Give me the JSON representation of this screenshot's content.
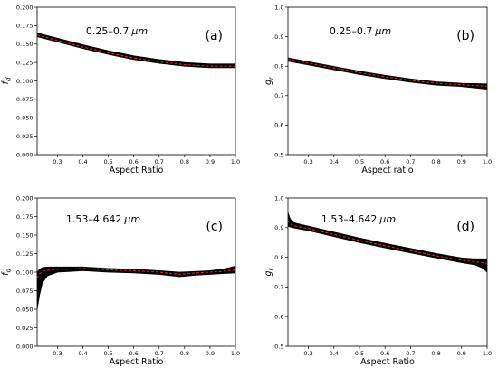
{
  "chart_data": [
    {
      "type": "line",
      "panel_label": "(a)",
      "annotation": "0.25–0.7",
      "annotation_unit": "μm",
      "xlabel": "Aspect Ratio",
      "ylabel_main": "f",
      "ylabel_sub": "d",
      "xlim": [
        0.22,
        1.0
      ],
      "ylim": [
        0.0,
        0.2
      ],
      "xticks": [
        "0.3",
        "0.4",
        "0.5",
        "0.6",
        "0.7",
        "0.8",
        "0.9",
        "1.0"
      ],
      "yticks": [
        "0.000",
        "0.025",
        "0.050",
        "0.075",
        "0.100",
        "0.125",
        "0.150",
        "0.175",
        "0.200"
      ],
      "series": [
        {
          "style": "band",
          "color": "#000000",
          "x": [
            0.22,
            0.3,
            0.4,
            0.5,
            0.6,
            0.7,
            0.8,
            0.9,
            1.0
          ],
          "upper": [
            0.165,
            0.158,
            0.149,
            0.141,
            0.134,
            0.129,
            0.125,
            0.123,
            0.123
          ],
          "lower": [
            0.16,
            0.153,
            0.144,
            0.136,
            0.129,
            0.124,
            0.12,
            0.118,
            0.118
          ]
        },
        {
          "style": "dashed",
          "color": "#e4262b",
          "x": [
            0.22,
            0.3,
            0.4,
            0.5,
            0.6,
            0.7,
            0.8,
            0.9,
            1.0
          ],
          "y": [
            0.162,
            0.155,
            0.146,
            0.138,
            0.131,
            0.126,
            0.122,
            0.12,
            0.12
          ]
        }
      ]
    },
    {
      "type": "line",
      "panel_label": "(b)",
      "annotation": "0.25–0.7",
      "annotation_unit": "μm",
      "xlabel": "Aspect ratio",
      "ylabel_main": "g",
      "ylabel_sub": "r",
      "xlim": [
        0.22,
        1.0
      ],
      "ylim": [
        0.5,
        1.0
      ],
      "xticks": [
        "0.3",
        "0.4",
        "0.5",
        "0.6",
        "0.7",
        "0.8",
        "0.9",
        "1.0"
      ],
      "yticks": [
        "0.5",
        "0.6",
        "0.7",
        "0.8",
        "0.9",
        "1.0"
      ],
      "series": [
        {
          "style": "band",
          "color": "#000000",
          "x": [
            0.22,
            0.3,
            0.4,
            0.5,
            0.6,
            0.7,
            0.8,
            0.9,
            1.0
          ],
          "upper": [
            0.828,
            0.815,
            0.799,
            0.783,
            0.769,
            0.757,
            0.747,
            0.742,
            0.74
          ],
          "lower": [
            0.817,
            0.804,
            0.788,
            0.772,
            0.758,
            0.746,
            0.736,
            0.731,
            0.722
          ]
        },
        {
          "style": "dashed",
          "color": "#e4262b",
          "x": [
            0.22,
            0.3,
            0.4,
            0.5,
            0.6,
            0.7,
            0.8,
            0.9,
            1.0
          ],
          "y": [
            0.823,
            0.81,
            0.794,
            0.778,
            0.764,
            0.752,
            0.742,
            0.737,
            0.732
          ]
        }
      ]
    },
    {
      "type": "line",
      "panel_label": "(c)",
      "annotation": "1.53–4.642",
      "annotation_unit": "μm",
      "xlabel": "Aspect Ratio",
      "ylabel_main": "f",
      "ylabel_sub": "d",
      "xlim": [
        0.22,
        1.0
      ],
      "ylim": [
        0.0,
        0.2
      ],
      "xticks": [
        "0.3",
        "0.4",
        "0.5",
        "0.6",
        "0.7",
        "0.8",
        "0.9",
        "1.0"
      ],
      "yticks": [
        "0.000",
        "0.025",
        "0.050",
        "0.075",
        "0.100",
        "0.125",
        "0.150",
        "0.175",
        "0.200"
      ],
      "series": [
        {
          "style": "band",
          "color": "#000000",
          "x": [
            0.22,
            0.23,
            0.24,
            0.26,
            0.3,
            0.35,
            0.4,
            0.5,
            0.6,
            0.7,
            0.78,
            0.85,
            0.9,
            0.95,
            1.0
          ],
          "upper": [
            0.1,
            0.104,
            0.106,
            0.107,
            0.107,
            0.107,
            0.107,
            0.105,
            0.104,
            0.102,
            0.1,
            0.101,
            0.102,
            0.104,
            0.108
          ],
          "lower": [
            0.05,
            0.07,
            0.085,
            0.095,
            0.1,
            0.101,
            0.102,
            0.1,
            0.099,
            0.097,
            0.094,
            0.096,
            0.097,
            0.098,
            0.099
          ]
        },
        {
          "style": "dashed",
          "color": "#e4262b",
          "x": [
            0.22,
            0.23,
            0.25,
            0.28,
            0.3,
            0.35,
            0.4,
            0.5,
            0.6,
            0.7,
            0.78,
            0.85,
            0.9,
            0.95,
            1.0
          ],
          "y": [
            0.092,
            0.098,
            0.102,
            0.103,
            0.104,
            0.104,
            0.105,
            0.103,
            0.102,
            0.1,
            0.097,
            0.099,
            0.1,
            0.101,
            0.103
          ]
        }
      ]
    },
    {
      "type": "line",
      "panel_label": "(d)",
      "annotation": "1.53–4.642",
      "annotation_unit": "μm",
      "xlabel": "Aspect Ratio",
      "ylabel_main": "g",
      "ylabel_sub": "r",
      "xlim": [
        0.22,
        1.0
      ],
      "ylim": [
        0.5,
        1.0
      ],
      "xticks": [
        "0.3",
        "0.4",
        "0.5",
        "0.6",
        "0.7",
        "0.8",
        "0.9",
        "1.0"
      ],
      "yticks": [
        "0.5",
        "0.6",
        "0.7",
        "0.8",
        "0.9",
        "1.0"
      ],
      "series": [
        {
          "style": "band",
          "color": "#000000",
          "x": [
            0.22,
            0.23,
            0.25,
            0.3,
            0.4,
            0.5,
            0.6,
            0.7,
            0.8,
            0.9,
            0.95,
            0.98,
            1.0
          ],
          "upper": [
            0.95,
            0.928,
            0.915,
            0.905,
            0.885,
            0.865,
            0.847,
            0.83,
            0.813,
            0.798,
            0.795,
            0.795,
            0.795
          ],
          "lower": [
            0.905,
            0.902,
            0.898,
            0.89,
            0.87,
            0.85,
            0.832,
            0.815,
            0.798,
            0.782,
            0.775,
            0.765,
            0.75
          ]
        },
        {
          "style": "dashed",
          "color": "#e4262b",
          "x": [
            0.22,
            0.23,
            0.25,
            0.3,
            0.4,
            0.5,
            0.6,
            0.7,
            0.8,
            0.9,
            0.95,
            0.98,
            1.0
          ],
          "y": [
            0.925,
            0.912,
            0.905,
            0.897,
            0.877,
            0.857,
            0.839,
            0.822,
            0.805,
            0.79,
            0.785,
            0.782,
            0.78
          ]
        }
      ]
    }
  ]
}
